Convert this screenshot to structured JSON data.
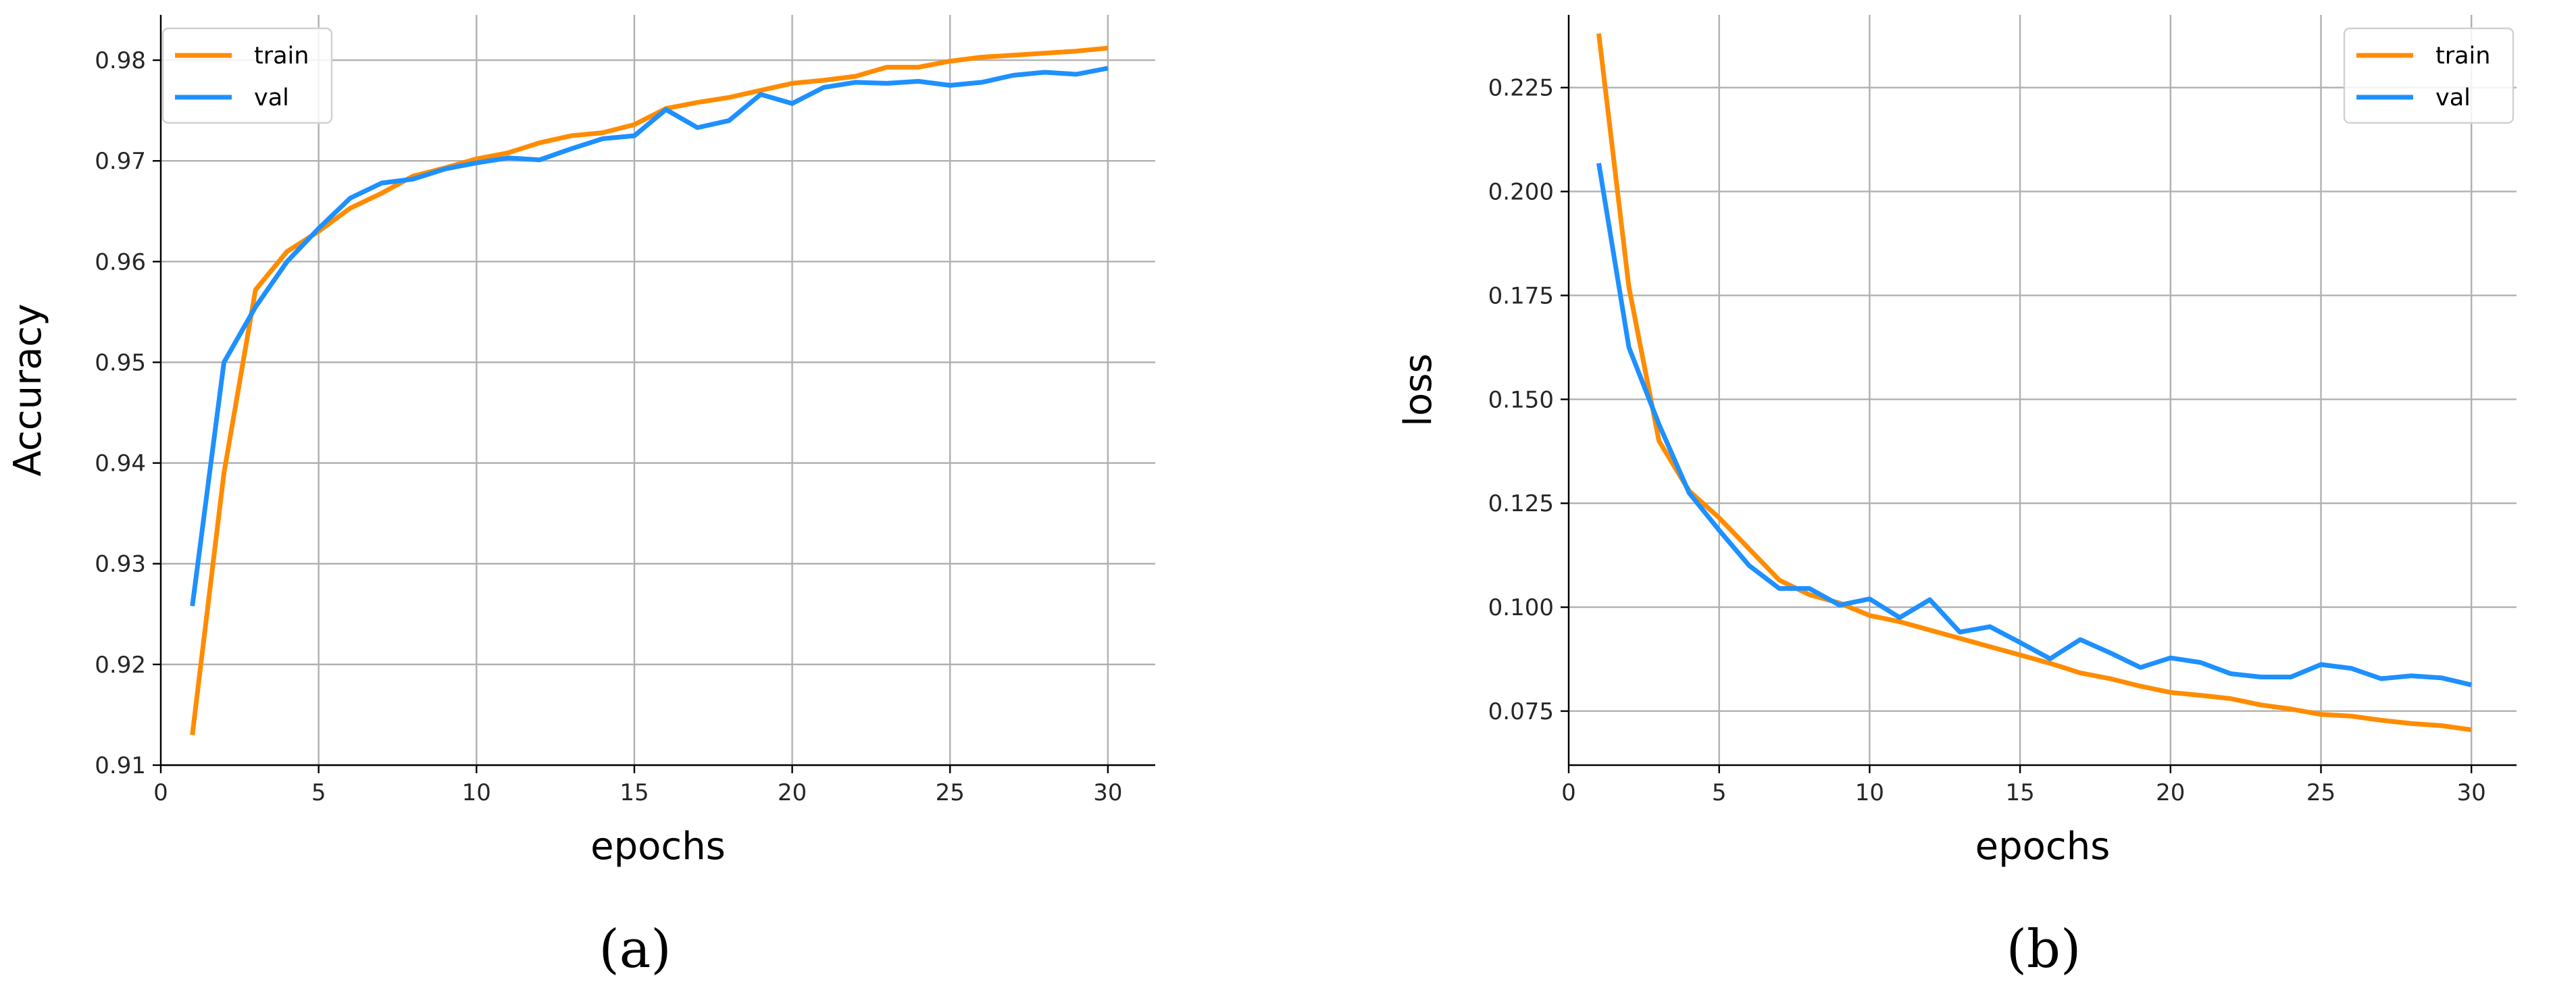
{
  "colors": {
    "train": "#ff8c00",
    "val": "#1e90ff",
    "grid": "#b0b0b0"
  },
  "captions": [
    "(a)",
    "(b)"
  ],
  "chart_data": [
    {
      "type": "line",
      "title": "",
      "xlabel": "epochs",
      "ylabel": "Accuracy",
      "xlim": [
        0,
        31.5
      ],
      "ylim": [
        0.91,
        0.9845
      ],
      "xticks": [
        0,
        5,
        10,
        15,
        20,
        25,
        30
      ],
      "yticks": [
        0.91,
        0.92,
        0.93,
        0.94,
        0.95,
        0.96,
        0.97,
        0.98
      ],
      "yfmt": 2,
      "grid": true,
      "legend": "upper-left",
      "x": [
        1,
        2,
        3,
        4,
        5,
        6,
        7,
        8,
        9,
        10,
        11,
        12,
        13,
        14,
        15,
        16,
        17,
        18,
        19,
        20,
        21,
        22,
        23,
        24,
        25,
        26,
        27,
        28,
        29,
        30
      ],
      "series": [
        {
          "name": "train",
          "color": "#ff8c00",
          "values": [
            0.913,
            0.939,
            0.9572,
            0.961,
            0.963,
            0.9653,
            0.9668,
            0.9685,
            0.9693,
            0.9702,
            0.9708,
            0.9718,
            0.9725,
            0.9728,
            0.9736,
            0.9752,
            0.9758,
            0.9763,
            0.977,
            0.9777,
            0.978,
            0.9784,
            0.9793,
            0.9793,
            0.9799,
            0.9803,
            0.9805,
            0.9807,
            0.9809,
            0.9812
          ]
        },
        {
          "name": "val",
          "color": "#1e90ff",
          "values": [
            0.9258,
            0.95,
            0.9555,
            0.96,
            0.9633,
            0.9663,
            0.9678,
            0.9682,
            0.9692,
            0.9698,
            0.9703,
            0.9701,
            0.9712,
            0.9722,
            0.9725,
            0.9751,
            0.9733,
            0.974,
            0.9766,
            0.9757,
            0.9773,
            0.9778,
            0.9777,
            0.9779,
            0.9775,
            0.9778,
            0.9785,
            0.9788,
            0.9786,
            0.9792
          ]
        }
      ]
    },
    {
      "type": "line",
      "title": "",
      "xlabel": "epochs",
      "ylabel": "loss",
      "xlim": [
        0,
        31.5
      ],
      "ylim": [
        0.062,
        0.2425
      ],
      "xticks": [
        0,
        5,
        10,
        15,
        20,
        25,
        30
      ],
      "yticks": [
        0.075,
        0.1,
        0.125,
        0.15,
        0.175,
        0.2,
        0.225
      ],
      "yfmt": 3,
      "grid": true,
      "legend": "upper-right",
      "x": [
        1,
        2,
        3,
        4,
        5,
        6,
        7,
        8,
        9,
        10,
        11,
        12,
        13,
        14,
        15,
        16,
        17,
        18,
        19,
        20,
        21,
        22,
        23,
        24,
        25,
        26,
        27,
        28,
        29,
        30
      ],
      "series": [
        {
          "name": "train",
          "color": "#ff8c00",
          "values": [
            0.238,
            0.177,
            0.14,
            0.128,
            0.1215,
            0.114,
            0.1065,
            0.103,
            0.101,
            0.098,
            0.0965,
            0.0945,
            0.0925,
            0.0905,
            0.0885,
            0.0865,
            0.0842,
            0.0828,
            0.081,
            0.0795,
            0.0788,
            0.078,
            0.0765,
            0.0755,
            0.0742,
            0.0738,
            0.0728,
            0.072,
            0.0715,
            0.0705
          ]
        },
        {
          "name": "val",
          "color": "#1e90ff",
          "values": [
            0.2068,
            0.1625,
            0.144,
            0.1275,
            0.1185,
            0.11,
            0.1045,
            0.1045,
            0.1005,
            0.102,
            0.0975,
            0.1018,
            0.094,
            0.0953,
            0.0915,
            0.0876,
            0.0922,
            0.089,
            0.0855,
            0.0878,
            0.0867,
            0.084,
            0.0832,
            0.0832,
            0.0862,
            0.0853,
            0.0828,
            0.0835,
            0.083,
            0.0813
          ]
        }
      ]
    }
  ]
}
